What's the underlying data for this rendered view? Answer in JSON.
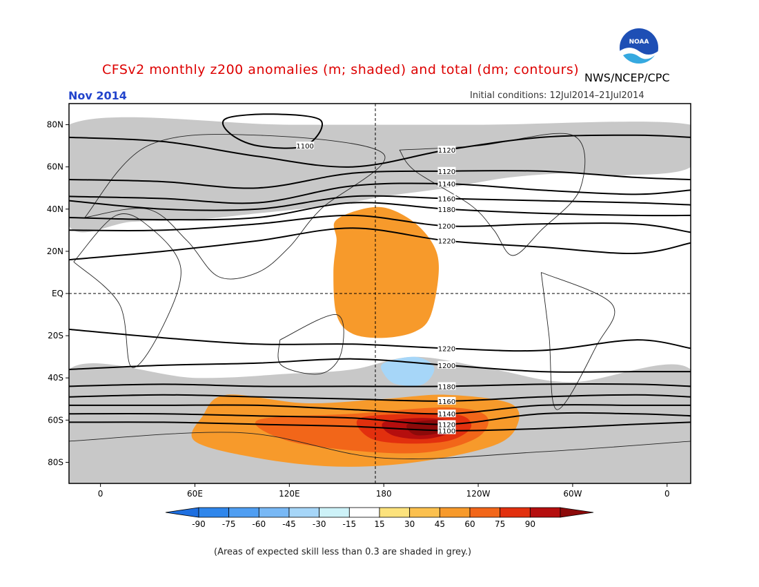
{
  "header": {
    "title": "CFSv2 monthly z200 anomalies (m; shaded) and total (dm; contours)",
    "agency": "NWS/NCEP/CPC",
    "logo_text": "NOAA",
    "month": "Nov 2014",
    "initial_conditions": "Initial conditions: 12Jul2014–21Jul2014"
  },
  "map": {
    "lat_labels": [
      "80N",
      "60N",
      "40N",
      "20N",
      "EQ",
      "20S",
      "40S",
      "60S",
      "80S"
    ],
    "lon_labels": [
      "0",
      "60E",
      "120E",
      "180",
      "120W",
      "60W",
      "0"
    ],
    "lon_range": [
      -20,
      375
    ],
    "lat_range": [
      -90,
      90
    ],
    "contour_labels": [
      "1100",
      "1120",
      "1140",
      "1160",
      "1180",
      "1200",
      "1220"
    ]
  },
  "colorbar": {
    "ticks": [
      "-90",
      "-75",
      "-60",
      "-45",
      "-30",
      "-15",
      "15",
      "30",
      "45",
      "60",
      "75",
      "90"
    ],
    "colors": [
      "#1e6fe0",
      "#2f86eb",
      "#4f9ef2",
      "#78b8f5",
      "#a6d6f8",
      "#cdf2f8",
      "#ffffff",
      "#fce27c",
      "#fbc04e",
      "#f79a2b",
      "#f26619",
      "#e2300e",
      "#b50e0e",
      "#8c0a0a"
    ]
  },
  "footer": {
    "note": "(Areas of expected skill less than 0.3 are shaded in grey.)"
  },
  "chart_data": {
    "type": "heatmap",
    "title": "CFSv2 monthly z200 anomalies (m; shaded) and total (dm; contours)",
    "subtitle": "Nov 2014",
    "initial_conditions": "12Jul2014–21Jul2014",
    "units_shaded": "m",
    "units_contours": "dm",
    "contour_levels": [
      1100,
      1120,
      1140,
      1160,
      1180,
      1200,
      1220
    ],
    "color_levels": [
      -90,
      -75,
      -60,
      -45,
      -30,
      -15,
      15,
      30,
      45,
      60,
      75,
      90
    ],
    "grey_meaning": "expected skill less than 0.3",
    "contours": [
      {
        "level": 1100,
        "points": [
          [
            -20,
            -61
          ],
          [
            40,
            -61
          ],
          [
            100,
            -62
          ],
          [
            160,
            -63
          ],
          [
            220,
            -65
          ],
          [
            280,
            -64
          ],
          [
            340,
            -62
          ],
          [
            375,
            -61
          ]
        ]
      },
      {
        "level": 1120,
        "points": [
          [
            -20,
            -57
          ],
          [
            40,
            -57
          ],
          [
            100,
            -58
          ],
          [
            160,
            -59
          ],
          [
            220,
            -62
          ],
          [
            280,
            -57
          ],
          [
            340,
            -57
          ],
          [
            375,
            -58
          ]
        ]
      },
      {
        "level": 1140,
        "points": [
          [
            -20,
            -53
          ],
          [
            40,
            -53
          ],
          [
            100,
            -53
          ],
          [
            160,
            -55
          ],
          [
            220,
            -57
          ],
          [
            280,
            -53
          ],
          [
            340,
            -53
          ],
          [
            375,
            -53
          ]
        ]
      },
      {
        "level": 1160,
        "points": [
          [
            -20,
            -49
          ],
          [
            40,
            -48
          ],
          [
            100,
            -49
          ],
          [
            160,
            -50
          ],
          [
            220,
            -51
          ],
          [
            280,
            -49
          ],
          [
            340,
            -48
          ],
          [
            375,
            -49
          ]
        ]
      },
      {
        "level": 1180,
        "points": [
          [
            -20,
            -44
          ],
          [
            40,
            -43
          ],
          [
            100,
            -44
          ],
          [
            160,
            -44
          ],
          [
            220,
            -44
          ],
          [
            280,
            -43
          ],
          [
            340,
            -43
          ],
          [
            375,
            -44
          ]
        ]
      },
      {
        "level": 1200,
        "points": [
          [
            -20,
            -36
          ],
          [
            40,
            -34
          ],
          [
            100,
            -33
          ],
          [
            160,
            -31
          ],
          [
            220,
            -34
          ],
          [
            280,
            -37
          ],
          [
            340,
            -37
          ],
          [
            375,
            -37
          ]
        ]
      },
      {
        "level": 1220,
        "points": [
          [
            -20,
            -17
          ],
          [
            40,
            -21
          ],
          [
            100,
            -24
          ],
          [
            160,
            -24
          ],
          [
            220,
            -26
          ],
          [
            280,
            -27
          ],
          [
            340,
            -22
          ],
          [
            375,
            -26
          ]
        ]
      },
      {
        "level": 1220,
        "points": [
          [
            -20,
            16
          ],
          [
            40,
            20
          ],
          [
            100,
            25
          ],
          [
            160,
            31
          ],
          [
            220,
            25
          ],
          [
            280,
            22
          ],
          [
            340,
            19
          ],
          [
            375,
            24
          ]
        ]
      },
      {
        "level": 1200,
        "points": [
          [
            -20,
            30
          ],
          [
            40,
            30
          ],
          [
            100,
            33
          ],
          [
            160,
            37
          ],
          [
            220,
            32
          ],
          [
            280,
            33
          ],
          [
            340,
            33
          ],
          [
            375,
            29
          ]
        ]
      },
      {
        "level": 1180,
        "points": [
          [
            -20,
            36
          ],
          [
            40,
            35
          ],
          [
            100,
            36
          ],
          [
            160,
            43
          ],
          [
            220,
            40
          ],
          [
            280,
            38
          ],
          [
            340,
            37
          ],
          [
            375,
            37
          ]
        ]
      },
      {
        "level": 1160,
        "points": [
          [
            -20,
            44
          ],
          [
            40,
            40
          ],
          [
            100,
            40
          ],
          [
            160,
            46
          ],
          [
            220,
            45
          ],
          [
            280,
            44
          ],
          [
            340,
            43
          ],
          [
            375,
            42
          ]
        ]
      },
      {
        "level": 1140,
        "points": [
          [
            -20,
            46
          ],
          [
            40,
            45
          ],
          [
            100,
            43
          ],
          [
            160,
            51
          ],
          [
            220,
            52
          ],
          [
            280,
            49
          ],
          [
            340,
            47
          ],
          [
            375,
            49
          ]
        ]
      },
      {
        "level": 1120,
        "points": [
          [
            -20,
            54
          ],
          [
            40,
            53
          ],
          [
            100,
            50
          ],
          [
            160,
            57
          ],
          [
            220,
            58
          ],
          [
            280,
            58
          ],
          [
            340,
            55
          ],
          [
            375,
            54
          ]
        ]
      },
      {
        "level": 1120,
        "points": [
          [
            -20,
            74
          ],
          [
            40,
            72
          ],
          [
            100,
            65
          ],
          [
            160,
            60
          ],
          [
            220,
            68
          ],
          [
            280,
            74
          ],
          [
            340,
            75
          ],
          [
            375,
            74
          ]
        ]
      },
      {
        "level": 1100,
        "points": [
          [
            80,
            83
          ],
          [
            110,
            85
          ],
          [
            140,
            82
          ],
          [
            130,
            70
          ],
          [
            100,
            70
          ],
          [
            82,
            76
          ]
        ]
      }
    ],
    "anomaly_regions": [
      {
        "anomaly": 30,
        "points": [
          [
            150,
            35
          ],
          [
            175,
            41
          ],
          [
            195,
            36
          ],
          [
            210,
            25
          ],
          [
            215,
            12
          ],
          [
            210,
            -10
          ],
          [
            200,
            -18
          ],
          [
            180,
            -21
          ],
          [
            160,
            -19
          ],
          [
            150,
            -10
          ],
          [
            148,
            10
          ],
          [
            150,
            25
          ]
        ]
      },
      {
        "anomaly": 30,
        "points": [
          [
            80,
            -48
          ],
          [
            130,
            -52
          ],
          [
            180,
            -50
          ],
          [
            220,
            -48
          ],
          [
            260,
            -52
          ],
          [
            265,
            -62
          ],
          [
            250,
            -72
          ],
          [
            200,
            -80
          ],
          [
            150,
            -82
          ],
          [
            100,
            -78
          ],
          [
            60,
            -70
          ],
          [
            65,
            -58
          ]
        ]
      },
      {
        "anomaly": 45,
        "points": [
          [
            100,
            -60
          ],
          [
            160,
            -57
          ],
          [
            220,
            -54
          ],
          [
            245,
            -58
          ],
          [
            240,
            -68
          ],
          [
            210,
            -75
          ],
          [
            170,
            -75
          ],
          [
            120,
            -70
          ]
        ]
      },
      {
        "anomaly": 60,
        "points": [
          [
            165,
            -59
          ],
          [
            205,
            -57
          ],
          [
            230,
            -58
          ],
          [
            235,
            -64
          ],
          [
            220,
            -70
          ],
          [
            190,
            -71
          ],
          [
            170,
            -68
          ]
        ]
      },
      {
        "anomaly": 75,
        "points": [
          [
            180,
            -61
          ],
          [
            205,
            -59
          ],
          [
            225,
            -61
          ],
          [
            222,
            -66
          ],
          [
            205,
            -69
          ],
          [
            185,
            -67
          ]
        ]
      },
      {
        "anomaly": 90,
        "points": [
          [
            195,
            -62
          ],
          [
            212,
            -60
          ],
          [
            222,
            -62
          ],
          [
            215,
            -66
          ],
          [
            200,
            -67
          ]
        ]
      },
      {
        "anomaly": -30,
        "points": [
          [
            180,
            -33
          ],
          [
            200,
            -30
          ],
          [
            212,
            -35
          ],
          [
            205,
            -43
          ],
          [
            188,
            -43
          ],
          [
            180,
            -38
          ]
        ]
      }
    ]
  }
}
